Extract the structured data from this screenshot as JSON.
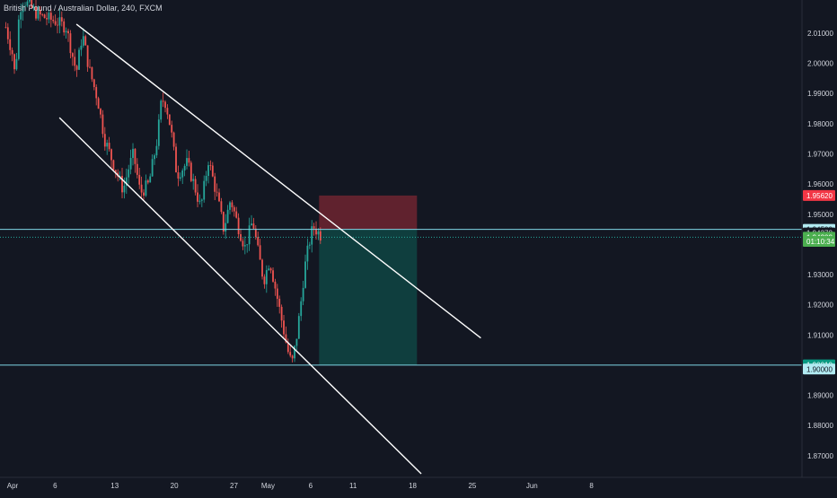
{
  "chart_data": {
    "type": "candlestick",
    "title": "British Pound / Australian Dollar, 240, FXCM",
    "ylim": [
      1.8628,
      2.021
    ],
    "y_ticks": [
      1.87,
      1.88,
      1.89,
      1.9,
      1.91,
      1.92,
      1.93,
      1.95,
      1.96,
      1.97,
      1.98,
      1.99,
      2.0,
      2.01
    ],
    "y_tick_labels": [
      "1.87000",
      "1.88000",
      "1.89000",
      "1.90000",
      "1.91000",
      "1.92000",
      "1.93000",
      "1.95000",
      "1.96000",
      "1.97000",
      "1.98000",
      "1.99000",
      "2.00000",
      "2.01000"
    ],
    "x_ticks": [
      {
        "label": "Apr",
        "day": 0
      },
      {
        "label": "6",
        "day": 5
      },
      {
        "label": "13",
        "day": 12
      },
      {
        "label": "20",
        "day": 19
      },
      {
        "label": "27",
        "day": 26
      },
      {
        "label": "May",
        "day": 30
      },
      {
        "label": "6",
        "day": 35
      },
      {
        "label": "11",
        "day": 40
      },
      {
        "label": "18",
        "day": 47
      },
      {
        "label": "25",
        "day": 54
      },
      {
        "label": "Jun",
        "day": 61
      },
      {
        "label": "8",
        "day": 68
      }
    ],
    "price_path": [
      [
        -0.8,
        2.012
      ],
      [
        0.0,
        2.003
      ],
      [
        0.3,
        1.995
      ],
      [
        0.8,
        2.018
      ],
      [
        1.3,
        2.021
      ],
      [
        3.0,
        2.016
      ],
      [
        5.0,
        2.014
      ],
      [
        6.3,
        2.012
      ],
      [
        7.0,
        2.003
      ],
      [
        7.5,
        1.997
      ],
      [
        8.2,
        2.01
      ],
      [
        9.0,
        1.998
      ],
      [
        10.0,
        1.988
      ],
      [
        10.8,
        1.975
      ],
      [
        11.8,
        1.967
      ],
      [
        13.0,
        1.958
      ],
      [
        13.6,
        1.965
      ],
      [
        14.2,
        1.97
      ],
      [
        15.0,
        1.957
      ],
      [
        16.0,
        1.96
      ],
      [
        17.0,
        1.975
      ],
      [
        17.5,
        1.988
      ],
      [
        18.0,
        1.987
      ],
      [
        18.6,
        1.978
      ],
      [
        19.3,
        1.963
      ],
      [
        20.5,
        1.967
      ],
      [
        21.3,
        1.96
      ],
      [
        22.1,
        1.952
      ],
      [
        23.0,
        1.968
      ],
      [
        24.1,
        1.955
      ],
      [
        24.8,
        1.945
      ],
      [
        25.6,
        1.955
      ],
      [
        26.5,
        1.946
      ],
      [
        27.3,
        1.939
      ],
      [
        28.2,
        1.948
      ],
      [
        28.8,
        1.938
      ],
      [
        29.5,
        1.928
      ],
      [
        30.2,
        1.935
      ],
      [
        30.9,
        1.925
      ],
      [
        31.6,
        1.915
      ],
      [
        32.3,
        1.905
      ],
      [
        32.8,
        1.9001
      ],
      [
        33.3,
        1.908
      ],
      [
        33.8,
        1.919
      ],
      [
        34.3,
        1.932
      ],
      [
        34.8,
        1.94
      ],
      [
        35.3,
        1.946
      ],
      [
        35.8,
        1.9443
      ],
      [
        36.2,
        1.943
      ]
    ],
    "channel_lines": [
      {
        "name": "upper-trendline",
        "start": [
          7.5,
          2.013
        ],
        "end": [
          55.0,
          1.909
        ]
      },
      {
        "name": "lower-trendline",
        "start": [
          5.5,
          1.982
        ],
        "end": [
          48.0,
          1.864
        ]
      }
    ],
    "position": {
      "type": "short",
      "entry": 1.945,
      "stop": 1.9562,
      "target": 1.9001,
      "x_start_day": 36.0,
      "x_end_day": 47.5
    },
    "horizontal_lines": [
      {
        "price": 1.945,
        "color": "#7fd6e6"
      },
      {
        "price": 1.9,
        "color": "#7fd6e6"
      }
    ],
    "price_labels": [
      {
        "text": "1.95620",
        "price": 1.9562,
        "bg": "#f23645",
        "fg": "#ffffff"
      },
      {
        "text": "1.94500",
        "price": 1.945,
        "bg": "#b2ebf2",
        "fg": "#131722"
      },
      {
        "text": "1.94378",
        "price": 1.94378,
        "bg": "#131722",
        "fg": "#d1d4dc"
      },
      {
        "text": "1.94302",
        "price": 1.9424,
        "bg": "#4caf50",
        "fg": "#ffffff"
      },
      {
        "text": "01:10:34",
        "price": 1.941,
        "bg": "#4caf50",
        "fg": "#ffffff"
      },
      {
        "text": "1.90010",
        "price": 1.9001,
        "bg": "#089981",
        "fg": "#ffffff"
      },
      {
        "text": "1.90000",
        "price": 1.8987,
        "bg": "#b2ebf2",
        "fg": "#131722"
      }
    ],
    "colors": {
      "background": "#131722",
      "up": "#26a69a",
      "down": "#ef5350",
      "text": "#d1d4dc",
      "grid_border": "#2a2e39",
      "channel": "#ffffff",
      "stop_zone": "rgba(242,54,69,0.35)",
      "target_zone": "rgba(8,153,129,0.30)",
      "current_price_line": "#26a69a"
    }
  }
}
